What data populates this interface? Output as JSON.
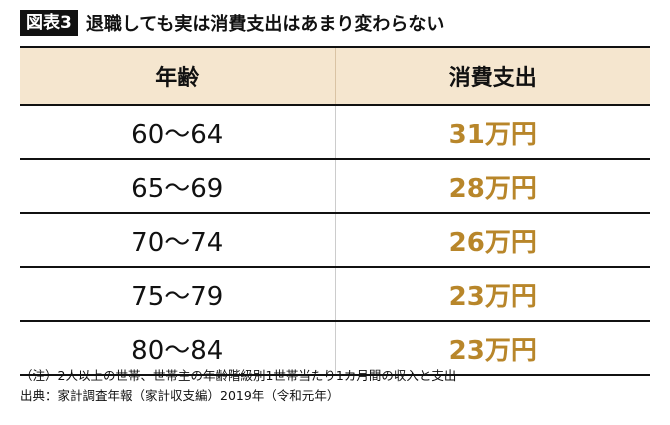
{
  "figure": {
    "badge": "図表3",
    "title": "退職しても実は消費支出はあまり変わらない"
  },
  "table": {
    "headers": [
      "年齢",
      "消費支出"
    ],
    "rows": [
      {
        "age": "60〜64",
        "spending": "31万円"
      },
      {
        "age": "65〜69",
        "spending": "28万円"
      },
      {
        "age": "70〜74",
        "spending": "26万円"
      },
      {
        "age": "75〜79",
        "spending": "23万円"
      },
      {
        "age": "80〜84",
        "spending": "23万円"
      }
    ]
  },
  "notes": {
    "note": "（注）2人以上の世帯、世帯主の年齢階級別1世帯当たり1カ月間の収入と支出",
    "source": "出典：家計調査年報（家計収支編）2019年（令和元年）"
  },
  "colors": {
    "header_bg": "#f5e6cf",
    "value_text": "#b8862a",
    "rule": "#111111"
  }
}
